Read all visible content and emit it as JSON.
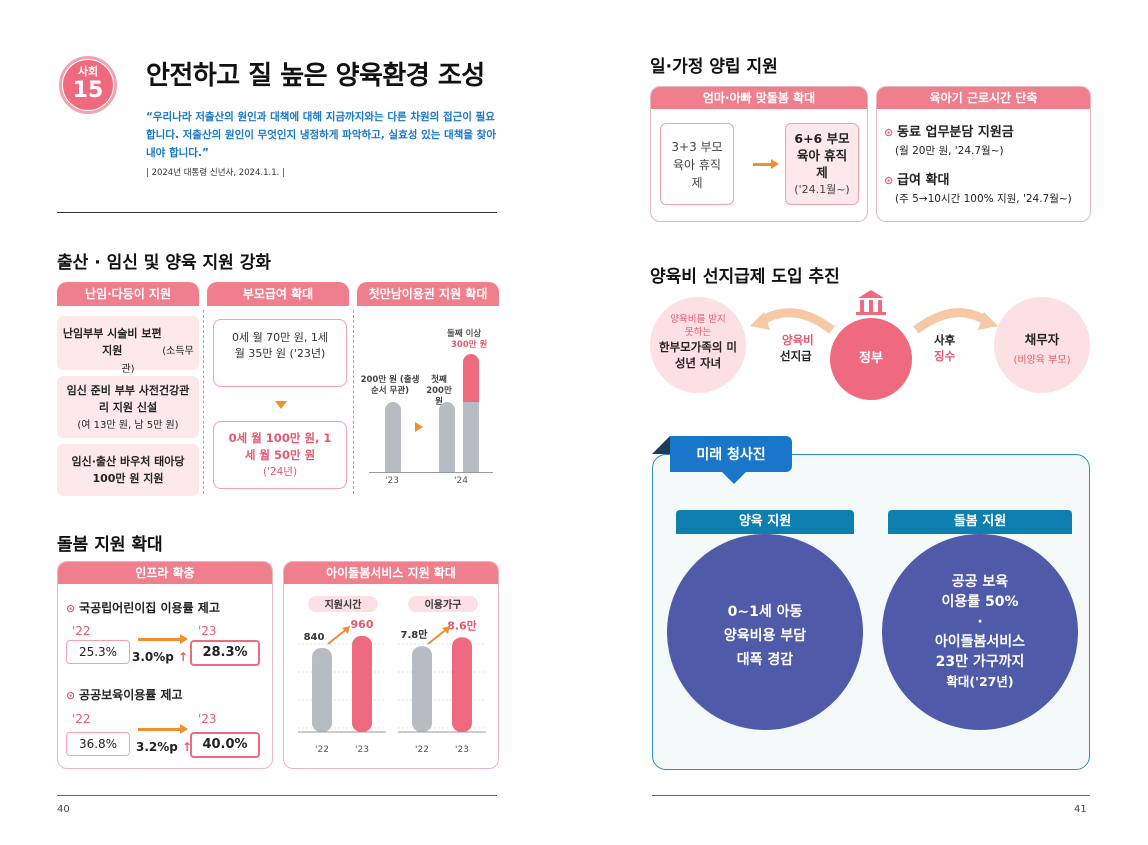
{
  "left": {
    "badge": {
      "category": "사회",
      "number": "15"
    },
    "title": "안전하고 질 높은 양육환경 조성",
    "quote": "“우리나라 저출산의 원인과 대책에 대해 지금까지와는 다른 차원의 접근이 필요합니다. 저출산의 원인이 무엇인지 냉정하게 파악하고, 실효성 있는 대책을 찾아내야 합니다.”",
    "quote_source": "| 2024년 대통령 신년사, 2024.1.1. |",
    "section1": {
      "title": "출산 · 임신 및 양육 지원 강화",
      "col1_header": "난임·다둥이 지원",
      "col1_items": [
        {
          "title": "난임부부 시술비 보편지원",
          "note": "(소득무관)"
        },
        {
          "title": "임신 준비 부부 사전건강관리 지원 신설",
          "note": "(여 13만 원, 남 5만 원)"
        },
        {
          "title": "임신·출산 바우처 태아당 100만 원 지원",
          "note": ""
        }
      ],
      "col2_header": "부모급여 확대",
      "col2_before": "0세 월 70만 원, 1세 월 35만 원 ('23년)",
      "col2_after": "0세 월 100만 원, 1세 월 50만 원",
      "col2_after_year": "('24년)",
      "col3_header": "첫만남이용권 지원 확대",
      "col3_chart": {
        "label_23": "200만 원 (출생순서 무관)",
        "label_24_first": "첫째 200만 원",
        "label_24_second": "둘째 이상",
        "label_24_second_value": "300만 원",
        "x_labels": [
          "'23",
          "'24"
        ]
      }
    },
    "section2": {
      "title": "돌봄 지원 확대",
      "infra_header": "인프라 확충",
      "item1": {
        "title": "국공립어린이집 이용률 제고",
        "y1": "'22",
        "v1": "25.3%",
        "y2": "'23",
        "v2": "28.3%",
        "delta": "3.0%p"
      },
      "item2": {
        "title": "공공보육이용률 제고",
        "y1": "'22",
        "v1": "36.8%",
        "y2": "'23",
        "v2": "40.0%",
        "delta": "3.2%p"
      },
      "service_header": "아이돌봄서비스 지원 확대"
    },
    "page_number": "40"
  },
  "right": {
    "section1": {
      "title": "일·가정 양립 지원",
      "card1_header": "엄마·아빠 맞돌봄 확대",
      "card1_before": "3+3 부모육아 휴직제",
      "card1_after": "6+6 부모육아 휴직제",
      "card1_after_year": "('24.1월~)",
      "card2_header": "육아기 근로시간 단축",
      "card2_item1_title": "동료 업무분담 지원금",
      "card2_item1_note": "(월 20만 원, '24.7월~)",
      "card2_item2_title": "급여 확대",
      "card2_item2_note": "(주 5→10시간 100% 지원, '24.7월~)"
    },
    "section2": {
      "title": "양육비 선지급제 도입 추진",
      "circle_left_top": "양육비를 받지 못하는",
      "circle_left_main": "한부모가족의 미성년 자녀",
      "arrow_left_label_1": "양육비",
      "arrow_left_label_2": "선지급",
      "center": "정부",
      "arrow_right_label_1": "사후",
      "arrow_right_label_2": "징수",
      "circle_right_main": "채무자",
      "circle_right_sub": "(비양육 부모)"
    },
    "section3": {
      "tab": "미래 청사진",
      "left_header": "양육 지원",
      "left_lines": [
        "0~1세 아동",
        "양육비용 부담",
        "대폭 경감"
      ],
      "right_header": "돌봄 지원",
      "right_lines": [
        "공공 보육",
        "이용률 50%",
        "·",
        "아이돌봄서비스",
        "23만 가구까지",
        "확대('27년)"
      ]
    },
    "page_number": "41"
  },
  "chart_data": [
    {
      "type": "bar",
      "title": "",
      "categories": [
        "'23",
        "'24"
      ],
      "series": [
        {
          "name": "첫째",
          "values": [
            200,
            200
          ]
        },
        {
          "name": "둘째 이상",
          "values": [
            200,
            300
          ]
        }
      ],
      "ylabel": "",
      "unit": "만 원"
    },
    {
      "type": "bar",
      "title": "지원시간",
      "categories": [
        "'22",
        "'23"
      ],
      "values": [
        840,
        960
      ],
      "labels": [
        "840",
        "960"
      ],
      "ylim": [
        0,
        1100
      ]
    },
    {
      "type": "bar",
      "title": "이용가구",
      "categories": [
        "'22",
        "'23"
      ],
      "values": [
        7.8,
        8.6
      ],
      "labels": [
        "7.8만",
        "8.6만"
      ],
      "ylim": [
        0,
        10
      ]
    }
  ],
  "colors": {
    "pink": "#ef6a7e",
    "gray": "#b7bcc3",
    "navy": "#4f5aa8",
    "blue": "#1976c9",
    "teal": "#0f7fb0"
  }
}
